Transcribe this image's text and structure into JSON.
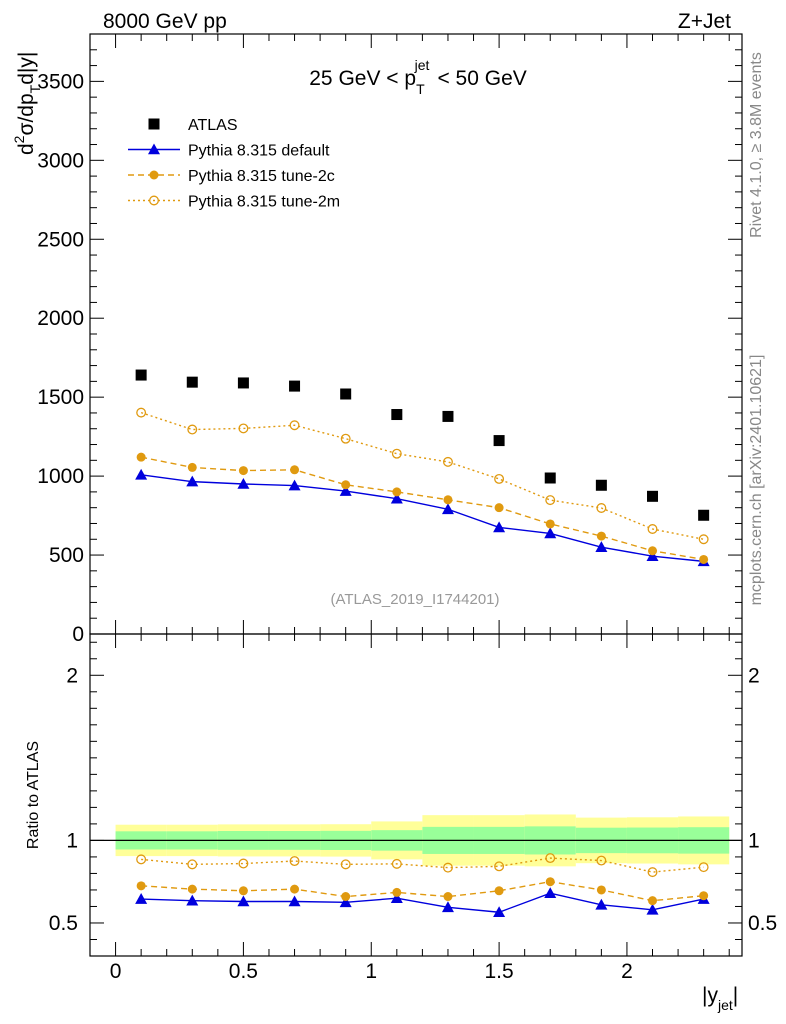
{
  "header": {
    "left_label": "8000 GeV pp",
    "right_label": "Z+Jet"
  },
  "side_labels": {
    "rivet": "Rivet 4.1.0, ≥ 3.8M events",
    "mcplots": "mcplots.cern.ch [arXiv:2401.10621]"
  },
  "chart_data": [
    {
      "type": "scatter",
      "title": "25 GeV < p_T^jet < 50 GeV",
      "title_parts": {
        "prefix": "25 GeV < p",
        "sub": "T",
        "sup": "jet",
        "suffix": "< 50 GeV"
      },
      "ylabel": "d²σ/dp_T d|y|",
      "ylabel_parts": {
        "d": "d",
        "sup2": "2",
        "body": "σ/dp",
        "subT": "T",
        "tail": "d|y|"
      },
      "watermark": "(ATLAS_2019_I1744201)",
      "xlim": [
        -0.1,
        2.45
      ],
      "ylim": [
        0,
        3800
      ],
      "yticks": [
        0,
        500,
        1000,
        1500,
        2000,
        2500,
        3000,
        3500
      ],
      "ytick_labels": [
        "0",
        "500",
        "1000",
        "1500",
        "2000",
        "2500",
        "3000",
        "3500"
      ],
      "x": [
        0.1,
        0.3,
        0.5,
        0.7,
        0.9,
        1.1,
        1.3,
        1.5,
        1.7,
        1.9,
        2.1,
        2.3
      ],
      "series": [
        {
          "name": "ATLAS",
          "marker": "square",
          "color": "#000000",
          "values": [
            1640,
            1595,
            1590,
            1570,
            1520,
            1390,
            1378,
            1225,
            988,
            942,
            872,
            752
          ]
        },
        {
          "name": "Pythia 8.315 default",
          "marker": "triangle",
          "color": "#0000dd",
          "line": "solid",
          "values": [
            1008,
            965,
            950,
            940,
            905,
            857,
            790,
            675,
            637,
            550,
            493,
            460
          ]
        },
        {
          "name": "Pythia 8.315 tune-2c",
          "marker": "circle",
          "color": "#e09a10",
          "line": "dashed",
          "values": [
            1120,
            1055,
            1035,
            1040,
            945,
            900,
            850,
            800,
            697,
            620,
            527,
            472
          ]
        },
        {
          "name": "Pythia 8.315 tune-2m",
          "marker": "open-circle",
          "color": "#e09a10",
          "line": "dotted",
          "values": [
            1402,
            1295,
            1302,
            1322,
            1237,
            1142,
            1090,
            982,
            848,
            798,
            665,
            600
          ]
        }
      ]
    },
    {
      "type": "line",
      "ylabel": "Ratio to ATLAS",
      "xlabel": "|y_jet|",
      "xlabel_parts": {
        "main": "|y",
        "sub": "jet",
        "end": "|"
      },
      "xlim": [
        -0.1,
        2.45
      ],
      "ylim": [
        0.3,
        2.25
      ],
      "xticks": [
        0,
        0.5,
        1,
        1.5,
        2
      ],
      "xtick_labels": [
        "0",
        "0.5",
        "1",
        "1.5",
        "2"
      ],
      "yticks": [
        0.5,
        1,
        2
      ],
      "ytick_labels": [
        "0.5",
        "1",
        "2"
      ],
      "x": [
        0.1,
        0.3,
        0.5,
        0.7,
        0.9,
        1.1,
        1.3,
        1.5,
        1.7,
        1.9,
        2.1,
        2.3
      ],
      "bins": [
        [
          0.0,
          0.2
        ],
        [
          0.2,
          0.4
        ],
        [
          0.4,
          0.6
        ],
        [
          0.6,
          0.8
        ],
        [
          0.8,
          1.0
        ],
        [
          1.0,
          1.2
        ],
        [
          1.2,
          1.4
        ],
        [
          1.4,
          1.6
        ],
        [
          1.6,
          1.8
        ],
        [
          1.8,
          2.0
        ],
        [
          2.0,
          2.2
        ],
        [
          2.2,
          2.4
        ]
      ],
      "band_green_halfwidth": [
        0.055,
        0.055,
        0.057,
        0.057,
        0.058,
        0.062,
        0.082,
        0.082,
        0.085,
        0.077,
        0.078,
        0.08
      ],
      "band_yellow_halfwidth": [
        0.095,
        0.095,
        0.097,
        0.097,
        0.098,
        0.115,
        0.153,
        0.153,
        0.157,
        0.138,
        0.14,
        0.145
      ],
      "band_colors": {
        "green": "#99ff99",
        "yellow": "#ffff99"
      },
      "series": [
        {
          "name": "Pythia 8.315 default",
          "marker": "triangle",
          "color": "#0000dd",
          "line": "solid",
          "values": [
            0.645,
            0.635,
            0.63,
            0.63,
            0.625,
            0.65,
            0.595,
            0.565,
            0.68,
            0.61,
            0.58,
            0.645
          ]
        },
        {
          "name": "Pythia 8.315 tune-2c",
          "marker": "circle",
          "color": "#e09a10",
          "line": "dashed",
          "values": [
            0.725,
            0.705,
            0.695,
            0.705,
            0.66,
            0.685,
            0.66,
            0.695,
            0.75,
            0.7,
            0.635,
            0.665
          ]
        },
        {
          "name": "Pythia 8.315 tune-2m",
          "marker": "open-circle",
          "color": "#e09a10",
          "line": "dotted",
          "values": [
            0.885,
            0.855,
            0.86,
            0.875,
            0.855,
            0.858,
            0.835,
            0.843,
            0.893,
            0.878,
            0.808,
            0.838
          ]
        }
      ]
    }
  ]
}
